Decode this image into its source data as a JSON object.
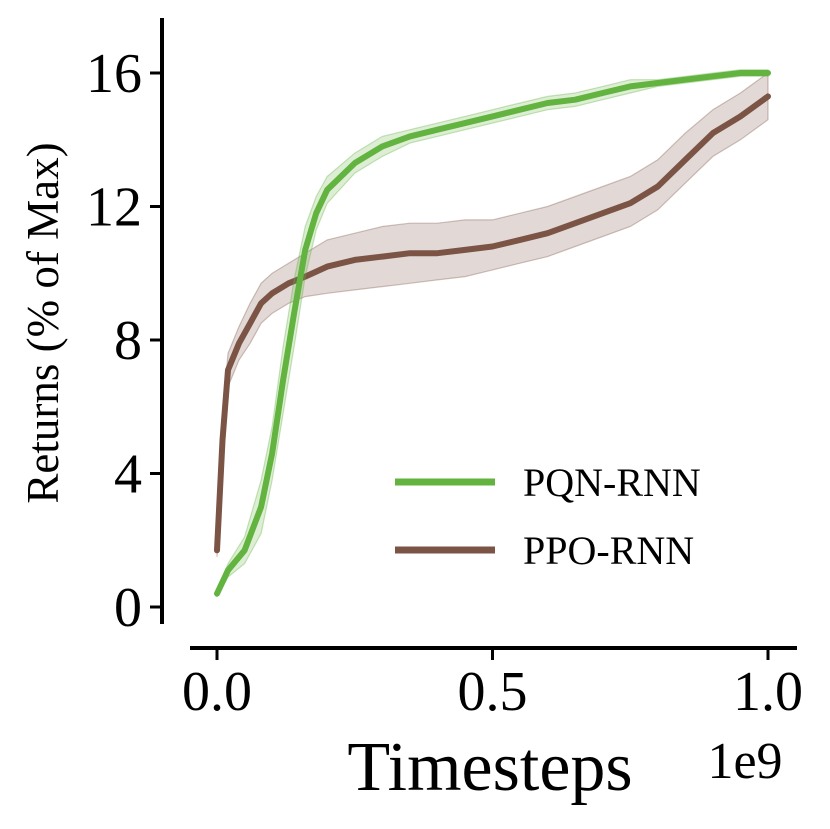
{
  "chart_data": {
    "type": "line",
    "xlabel": "Timesteps",
    "ylabel": "Returns (% of Max)",
    "x_scale_label": "1e9",
    "xlim": [
      0,
      1.0
    ],
    "ylim": [
      0,
      17
    ],
    "x_ticks": [
      0.0,
      0.5,
      1.0
    ],
    "x_tick_labels": [
      "0.0",
      "0.5",
      "1.0"
    ],
    "y_ticks": [
      0,
      4,
      8,
      12,
      16
    ],
    "y_tick_labels": [
      "0",
      "4",
      "8",
      "12",
      "16"
    ],
    "grid": false,
    "legend_position": "lower-right",
    "series": [
      {
        "name": "PQN-RNN",
        "color": "#62b33f",
        "x": [
          0.0,
          0.02,
          0.05,
          0.08,
          0.1,
          0.12,
          0.14,
          0.16,
          0.18,
          0.2,
          0.25,
          0.3,
          0.35,
          0.4,
          0.45,
          0.5,
          0.55,
          0.6,
          0.65,
          0.7,
          0.75,
          0.8,
          0.85,
          0.9,
          0.95,
          1.0
        ],
        "y": [
          0.4,
          1.1,
          1.7,
          3.0,
          4.6,
          6.8,
          8.8,
          10.7,
          11.8,
          12.5,
          13.3,
          13.8,
          14.1,
          14.3,
          14.5,
          14.7,
          14.9,
          15.1,
          15.2,
          15.4,
          15.6,
          15.7,
          15.8,
          15.9,
          16.0,
          16.0
        ],
        "lower": [
          0.3,
          0.9,
          1.3,
          2.2,
          3.8,
          5.8,
          7.8,
          9.9,
          11.3,
          12.1,
          13.0,
          13.5,
          13.9,
          14.1,
          14.3,
          14.5,
          14.7,
          14.9,
          15.0,
          15.2,
          15.4,
          15.6,
          15.7,
          15.8,
          15.9,
          15.9
        ],
        "upper": [
          0.5,
          1.3,
          2.1,
          3.8,
          5.4,
          7.8,
          9.8,
          11.4,
          12.3,
          12.9,
          13.6,
          14.1,
          14.3,
          14.5,
          14.7,
          14.9,
          15.1,
          15.3,
          15.4,
          15.6,
          15.8,
          15.8,
          15.9,
          16.0,
          16.1,
          16.1
        ]
      },
      {
        "name": "PPO-RNN",
        "color": "#7b5446",
        "x": [
          0.0,
          0.01,
          0.02,
          0.04,
          0.06,
          0.08,
          0.1,
          0.13,
          0.16,
          0.2,
          0.25,
          0.3,
          0.35,
          0.4,
          0.45,
          0.5,
          0.55,
          0.6,
          0.65,
          0.7,
          0.75,
          0.8,
          0.85,
          0.9,
          0.95,
          1.0
        ],
        "y": [
          1.7,
          5.0,
          7.1,
          7.9,
          8.5,
          9.1,
          9.4,
          9.7,
          9.9,
          10.2,
          10.4,
          10.5,
          10.6,
          10.6,
          10.7,
          10.8,
          11.0,
          11.2,
          11.5,
          11.8,
          12.1,
          12.6,
          13.4,
          14.2,
          14.7,
          15.3
        ],
        "lower": [
          1.5,
          4.3,
          6.6,
          7.4,
          7.9,
          8.5,
          8.8,
          9.1,
          9.3,
          9.4,
          9.5,
          9.6,
          9.7,
          9.8,
          9.9,
          10.1,
          10.3,
          10.5,
          10.8,
          11.1,
          11.4,
          11.9,
          12.7,
          13.5,
          14.0,
          14.6
        ],
        "upper": [
          2.0,
          5.7,
          7.6,
          8.4,
          9.1,
          9.7,
          10.0,
          10.3,
          10.6,
          11.0,
          11.2,
          11.4,
          11.5,
          11.5,
          11.6,
          11.6,
          11.8,
          12.0,
          12.3,
          12.6,
          12.9,
          13.4,
          14.2,
          14.9,
          15.4,
          16.0
        ]
      }
    ]
  }
}
